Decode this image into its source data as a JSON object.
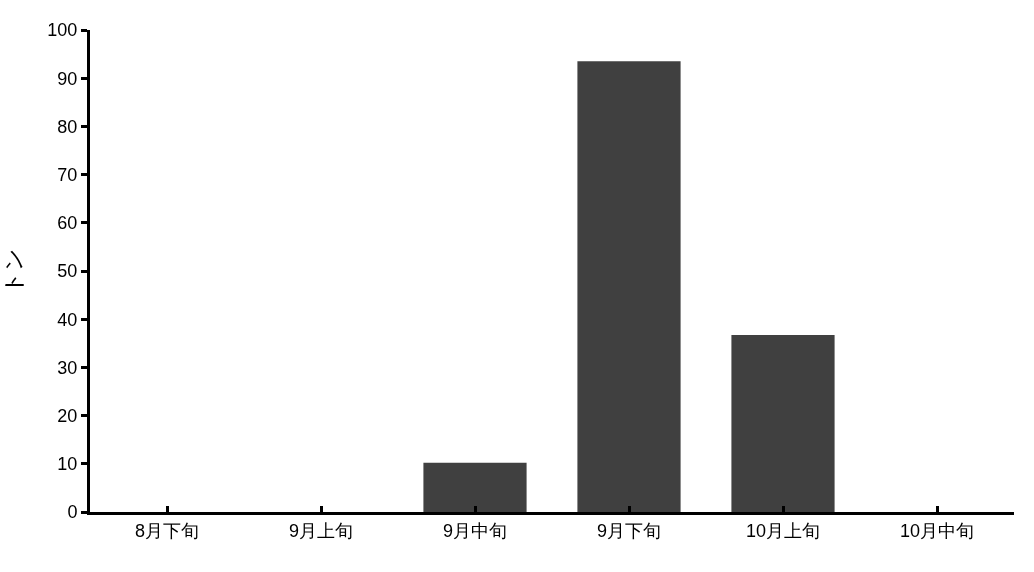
{
  "chart_data": {
    "type": "bar",
    "ylabel": "トン",
    "categories": [
      "8月下旬",
      "9月上旬",
      "9月中旬",
      "9月下旬",
      "10月上旬",
      "10月中旬"
    ],
    "values": [
      0,
      0,
      10.2,
      93.5,
      36.7,
      0
    ],
    "color": "#404040",
    "ylim": [
      0,
      100
    ],
    "yticks": [
      0,
      10,
      20,
      30,
      40,
      50,
      60,
      70,
      80,
      90,
      100
    ]
  }
}
